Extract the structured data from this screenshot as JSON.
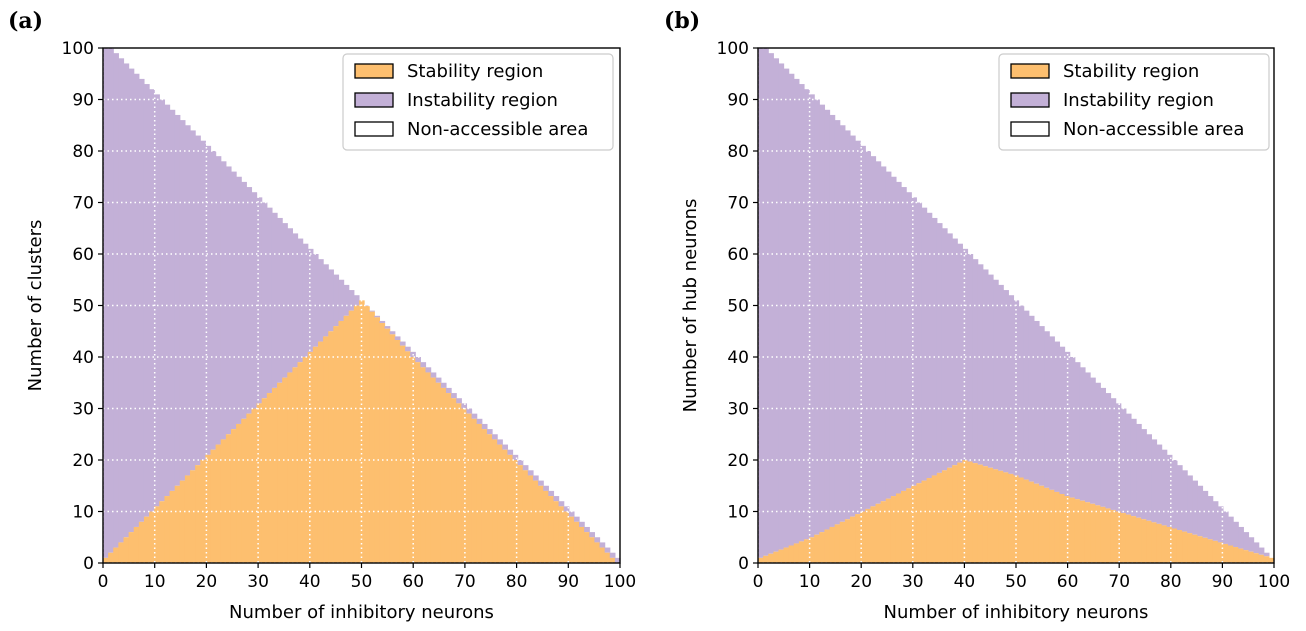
{
  "panels": [
    {
      "label": "(a)",
      "xlabel": "Number of inhibitory neurons",
      "ylabel": "Number of clusters",
      "legend": [
        "Stability region",
        "Instability region",
        "Non-accessible area"
      ]
    },
    {
      "label": "(b)",
      "xlabel": "Number of inhibitory neurons",
      "ylabel": "Number of hub neurons",
      "legend": [
        "Stability region",
        "Instability region",
        "Non-accessible area"
      ]
    }
  ],
  "colors": {
    "stability": "#fdbf6f",
    "instability": "#c3b0d7",
    "non_accessible": "#ffffff",
    "grid": "#ffffff",
    "frame": "#000000"
  },
  "chart_data": [
    {
      "type": "heatmap",
      "panel": "(a)",
      "title": "",
      "xlabel": "Number of inhibitory neurons",
      "ylabel": "Number of clusters",
      "xlim": [
        0,
        100
      ],
      "ylim": [
        0,
        100
      ],
      "xticks": [
        0,
        10,
        20,
        30,
        40,
        50,
        60,
        70,
        80,
        90,
        100
      ],
      "yticks": [
        0,
        10,
        20,
        30,
        40,
        50,
        60,
        70,
        80,
        90,
        100
      ],
      "grid": true,
      "legend_position": "top-right",
      "accessible_region": "y <= 100 - x",
      "boundary_x": [
        0,
        10,
        20,
        30,
        40,
        50,
        60,
        70,
        80,
        90,
        100
      ],
      "stability_max_y": [
        1,
        11,
        21,
        31,
        41,
        51,
        40,
        30,
        20,
        10,
        0
      ],
      "categories": [
        "Stability region",
        "Instability region",
        "Non-accessible area"
      ]
    },
    {
      "type": "heatmap",
      "panel": "(b)",
      "title": "",
      "xlabel": "Number of inhibitory neurons",
      "ylabel": "Number of hub neurons",
      "xlim": [
        0,
        100
      ],
      "ylim": [
        0,
        100
      ],
      "xticks": [
        0,
        10,
        20,
        30,
        40,
        50,
        60,
        70,
        80,
        90,
        100
      ],
      "yticks": [
        0,
        10,
        20,
        30,
        40,
        50,
        60,
        70,
        80,
        90,
        100
      ],
      "grid": true,
      "legend_position": "top-right",
      "accessible_region": "y <= 100 - x",
      "boundary_x": [
        0,
        10,
        20,
        30,
        40,
        50,
        60,
        70,
        80,
        90,
        100
      ],
      "stability_max_y": [
        1,
        5,
        10,
        15,
        20,
        17,
        13,
        10,
        7,
        4,
        1
      ],
      "categories": [
        "Stability region",
        "Instability region",
        "Non-accessible area"
      ]
    }
  ]
}
